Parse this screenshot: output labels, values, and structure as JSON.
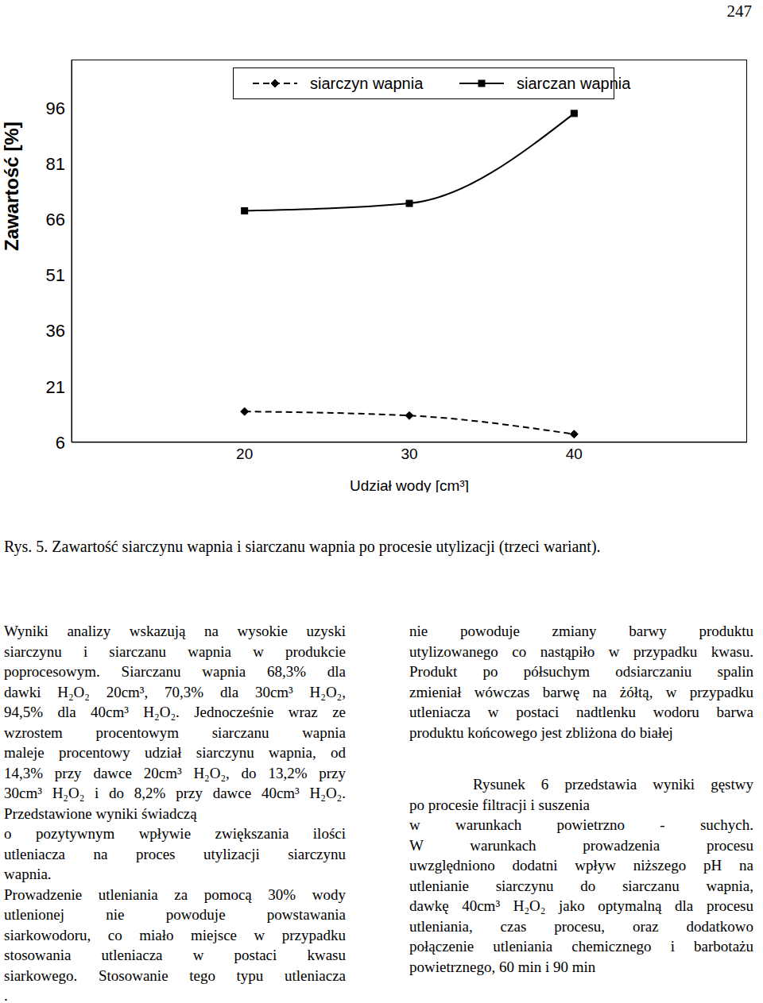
{
  "page_number": "247",
  "chart_data": {
    "type": "line",
    "x_label": "Udział wody [cm³]",
    "y_label": "Zawartość [%]",
    "x": [
      20,
      30,
      40
    ],
    "xlim": [
      9.5,
      50.5
    ],
    "xticks": [
      20,
      30,
      40
    ],
    "ylim": [
      6,
      109
    ],
    "yticks": [
      6,
      21,
      36,
      51,
      66,
      81,
      96
    ],
    "legend": "top",
    "series": [
      {
        "name": "siarczyn wapnia",
        "color": "#000000",
        "marker": "diamond",
        "line_style": "dashed",
        "values": [
          14.3,
          13.2,
          8.2
        ]
      },
      {
        "name": "siarczan wapnia",
        "color": "#000000",
        "marker": "square",
        "line_style": "solid",
        "values": [
          68.3,
          70.3,
          94.5
        ]
      }
    ]
  },
  "caption": "Rys. 5. Zawartość siarczynu wapnia i siarczanu wapnia po procesie utylizacji (trzeci wariant).",
  "columns": [
    [
      [
        "Wyniki analizy wskazują na wysokie uzyski",
        "siarczynu i siarczanu wapnia w produkcie",
        "poprocesowym. Siarczanu wapnia 68,3% dla",
        "dawki H₂O₂ 20cm³, 70,3% dla 30cm³ H₂O₂,",
        "94,5% dla 40cm³ H₂O₂. Jednocześnie wraz ze",
        "wzrostem procentowym siarczanu wapnia",
        "maleje procentowy udział siarczynu wapnia, od",
        "14,3% przy dawce 20cm³ H₂O₂, do 13,2% przy",
        "30cm³ H₂O₂ i do 8,2% przy dawce 40cm³ H₂O₂.",
        "Przedstawione wyniki świadczą"
      ],
      [
        "o pozytywnym wpływie zwiększania ilości",
        "utleniacza na proces utylizacji siarczynu",
        "wapnia."
      ],
      [
        "Prowadzenie utleniania za pomocą 30% wody",
        "utlenionej nie powoduje powstawania",
        "siarkowodoru, co miało miejsce w przypadku",
        "stosowania utleniacza w postaci kwasu",
        "siarkowego. Stosowanie tego typu utleniacza",
        "."
      ]
    ],
    [
      [
        "nie powoduje zmiany barwy produktu",
        "utylizowanego co nastąpiło w przypadku kwasu.",
        "Produkt po półsuchym odsiarczaniu spalin",
        "zmieniał wówczas barwę na żółtą, w przypadku",
        "utleniacza w postaci nadtlenku wodoru barwa",
        "produktu końcowego jest zbliżona do białej"
      ],
      [
        "Rysunek 6 przedstawia wyniki gęstwy",
        "po procesie filtracji i suszenia"
      ],
      [
        "w warunkach powietrzno - suchych.",
        "W warunkach prowadzenia procesu",
        "uwzględniono dodatni wpływ niższego pH na",
        "utlenianie siarczynu do siarczanu wapnia,",
        "dawkę 40cm³ H₂O₂ jako optymalną dla procesu",
        "utleniania, czas procesu, oraz dodatkowo",
        "połączenie utleniania chemicznego i barbotażu",
        "powietrznego, 60 min i 90 min"
      ]
    ]
  ]
}
